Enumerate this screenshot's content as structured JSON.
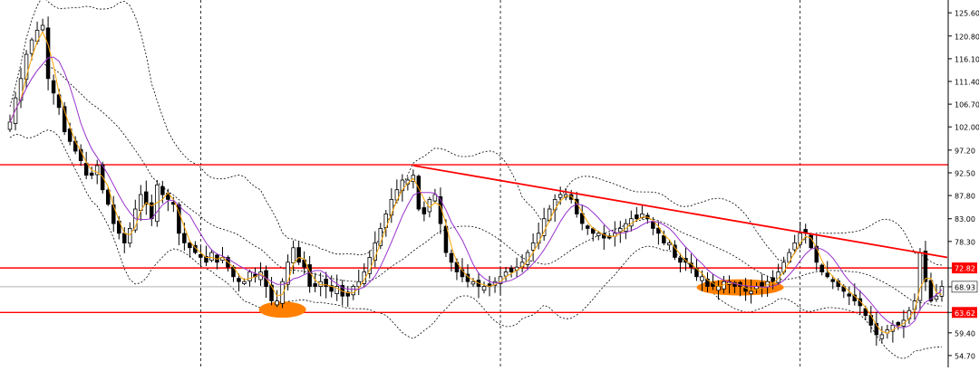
{
  "chart_data": {
    "type": "candlestick",
    "ylim": [
      53.0,
      127.5
    ],
    "y_ticks": [
      "125.60",
      "120.80",
      "116.10",
      "111.40",
      "106.70",
      "102.00",
      "97.20",
      "92.50",
      "87.80",
      "83.00",
      "78.30",
      "72.82",
      "68.93",
      "63.62",
      "59.40",
      "54.70"
    ],
    "horizontal_levels": [
      {
        "label": "94.17",
        "value": 94.17,
        "color": "#ff0000"
      },
      {
        "label": "72.82",
        "value": 72.82,
        "color": "#ff0000"
      },
      {
        "label": "63.62",
        "value": 63.62,
        "color": "#ff0000"
      }
    ],
    "current_price": {
      "label": "68.93",
      "value": 68.93
    },
    "trendline": {
      "color": "#ff0000",
      "from_bar": 74,
      "from_value": 94.0,
      "to_bar": 172,
      "to_value": 75.0
    },
    "highlight_zones": [
      {
        "bar": 50,
        "value": 64.2,
        "color": "#ff8000"
      },
      {
        "bar": 134,
        "value": 68.8,
        "color": "#ff8000"
      }
    ],
    "vertical_separators_bars": [
      35,
      90,
      145
    ],
    "indicators": [
      "Bollinger Bands",
      "Moving Average (orange)",
      "Moving Average (purple)"
    ],
    "colors": {
      "bull_body": "#ffffff",
      "bear_body": "#000000",
      "wick": "#000000",
      "ma_fast": "#ffa500",
      "ma_slow": "#9932cc",
      "bands": "#000000",
      "level_label_bg": "#ff0000",
      "level_label_text": "#ffffff"
    },
    "candles_close": [
      103,
      108,
      112,
      117,
      120,
      122,
      123,
      112,
      109,
      106,
      101,
      99,
      97,
      95,
      92,
      92,
      94,
      89,
      86,
      82,
      80,
      78,
      81,
      85,
      88,
      86,
      83,
      90,
      88,
      87,
      86,
      80,
      78,
      77,
      76,
      75,
      74,
      76,
      74,
      75,
      73,
      71,
      70,
      70,
      72,
      71,
      72,
      69,
      66,
      66,
      70,
      74,
      77,
      74,
      73,
      69,
      69,
      70,
      69,
      68,
      69,
      67,
      67,
      69,
      70,
      72,
      75,
      78,
      81,
      84,
      87,
      89,
      91,
      91,
      92,
      85,
      84,
      87,
      88,
      82,
      76,
      74,
      72,
      71,
      70,
      70,
      69,
      69,
      69,
      70,
      71,
      72,
      72,
      73,
      74,
      76,
      78,
      80,
      83,
      85,
      87,
      88,
      88,
      87,
      84,
      82,
      81,
      80,
      80,
      79,
      79,
      80,
      81,
      82,
      83,
      83,
      84,
      83,
      81,
      80,
      78,
      78,
      75,
      74,
      74,
      73,
      71,
      71,
      69,
      69,
      69,
      70,
      70,
      69,
      69,
      68,
      68,
      69,
      69,
      70,
      70,
      72,
      74,
      76,
      78,
      80,
      80,
      77,
      74,
      72,
      71,
      70,
      69,
      68,
      67,
      66,
      65,
      63,
      61,
      59,
      59,
      60,
      61,
      61,
      62,
      64,
      66,
      76,
      70,
      66,
      67,
      69
    ]
  }
}
